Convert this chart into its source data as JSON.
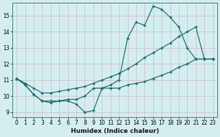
{
  "xlabel": "Humidex (Indice chaleur)",
  "bg_color": "#d4eef0",
  "line_color": "#1a6b6b",
  "xlim": [
    -0.5,
    23.5
  ],
  "ylim": [
    8.7,
    15.8
  ],
  "xticks": [
    0,
    1,
    2,
    3,
    4,
    5,
    6,
    7,
    8,
    9,
    10,
    11,
    12,
    13,
    14,
    15,
    16,
    17,
    18,
    19,
    20,
    21,
    22,
    23
  ],
  "yticks": [
    9,
    10,
    11,
    12,
    13,
    14,
    15
  ],
  "series": [
    {
      "x": [
        0,
        1,
        2,
        3,
        4,
        5,
        6,
        7,
        8,
        9,
        10,
        11,
        12,
        13,
        14,
        15,
        16,
        17,
        18,
        19,
        20,
        21,
        22,
        23
      ],
      "y": [
        11.1,
        10.7,
        10.1,
        9.7,
        9.6,
        9.7,
        9.7,
        9.5,
        9.0,
        9.1,
        10.5,
        10.7,
        11.0,
        13.6,
        14.6,
        14.4,
        15.6,
        15.4,
        14.9,
        14.3,
        13.0,
        12.3,
        12.3,
        12.3
      ]
    },
    {
      "x": [
        0,
        1,
        2,
        3,
        4,
        5,
        6,
        7,
        8,
        9,
        10,
        11,
        12,
        13,
        14,
        15,
        16,
        17,
        18,
        19,
        20,
        21,
        22,
        23
      ],
      "y": [
        11.1,
        10.8,
        10.5,
        10.2,
        10.2,
        10.3,
        10.4,
        10.5,
        10.6,
        10.8,
        11.0,
        11.2,
        11.4,
        11.7,
        12.0,
        12.4,
        12.7,
        13.0,
        13.3,
        13.7,
        14.0,
        14.3,
        12.3,
        12.3
      ]
    },
    {
      "x": [
        0,
        1,
        2,
        3,
        4,
        5,
        6,
        7,
        8,
        9,
        10,
        11,
        12,
        13,
        14,
        15,
        16,
        17,
        18,
        19,
        20,
        21,
        22,
        23
      ],
      "y": [
        11.1,
        10.7,
        10.1,
        9.7,
        9.7,
        9.7,
        9.8,
        9.8,
        10.0,
        10.5,
        10.5,
        10.5,
        10.5,
        10.7,
        10.8,
        10.9,
        11.1,
        11.3,
        11.5,
        11.8,
        12.0,
        12.3,
        12.3,
        12.3
      ]
    }
  ]
}
